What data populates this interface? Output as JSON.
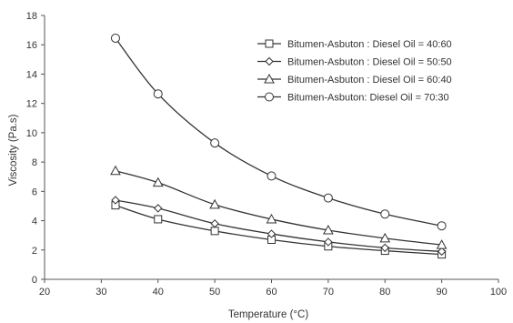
{
  "chart_data": {
    "type": "line",
    "xlabel": "Temperature (°C)",
    "ylabel": "Viscosity (Pa.s)",
    "xlim": [
      20,
      100
    ],
    "ylim": [
      0,
      18
    ],
    "xticks": [
      20,
      30,
      40,
      50,
      60,
      70,
      80,
      90,
      100
    ],
    "yticks": [
      0,
      2,
      4,
      6,
      8,
      10,
      12,
      14,
      16,
      18
    ],
    "grid": false,
    "legend_position": "top-right",
    "x": [
      32.5,
      40,
      50,
      60,
      70,
      80,
      90
    ],
    "series": [
      {
        "name": "Bitumen-Asbuton : Diesel Oil = 40:60",
        "marker": "square",
        "values": [
          5.05,
          4.1,
          3.3,
          2.7,
          2.25,
          1.95,
          1.7
        ]
      },
      {
        "name": "Bitumen-Asbuton : Diesel Oil = 50:50",
        "marker": "diamond",
        "values": [
          5.4,
          4.85,
          3.8,
          3.1,
          2.55,
          2.15,
          1.9
        ]
      },
      {
        "name": "Bitumen-Asbuton : Diesel Oil = 60:40",
        "marker": "triangle",
        "values": [
          7.4,
          6.6,
          5.1,
          4.1,
          3.35,
          2.8,
          2.35
        ]
      },
      {
        "name": "Bitumen-Asbuton: Diesel Oil = 70:30",
        "marker": "circle",
        "values": [
          16.45,
          12.65,
          9.3,
          7.05,
          5.55,
          4.45,
          3.65
        ]
      }
    ],
    "colors": {
      "line": "#333333",
      "marker_fill": "#ffffff",
      "axis": "#555555"
    }
  }
}
